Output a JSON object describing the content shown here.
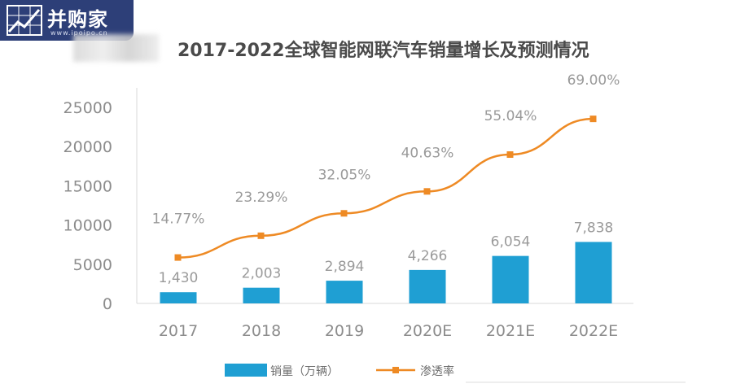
{
  "logo": {
    "text": "并购家",
    "url": "www.ipoipo.cn"
  },
  "chart_data": {
    "type": "bar",
    "title": "2017-2022全球智能网联汽车销量增长及预测情况",
    "categories": [
      "2017",
      "2018",
      "2019",
      "2020E",
      "2021E",
      "2022E"
    ],
    "ylim": [
      0,
      25000
    ],
    "yticks": [
      0,
      5000,
      10000,
      15000,
      20000,
      25000
    ],
    "series": [
      {
        "name": "销量（万辆）",
        "kind": "bar",
        "color": "#1f9fd3",
        "values": [
          1430,
          2003,
          2894,
          4266,
          6054,
          7838
        ],
        "labels": [
          "1,430",
          "2,003",
          "2,894",
          "4,266",
          "6,054",
          "7,838"
        ]
      },
      {
        "name": "渗透率",
        "kind": "line",
        "color": "#ee8a24",
        "values": [
          14.77,
          23.29,
          32.05,
          40.63,
          55.04,
          69.0
        ],
        "labels": [
          "14.77%",
          "23.29%",
          "32.05%",
          "40.63%",
          "55.04%",
          "69.00%"
        ]
      }
    ],
    "grid": false,
    "legend": "bottom-center"
  }
}
